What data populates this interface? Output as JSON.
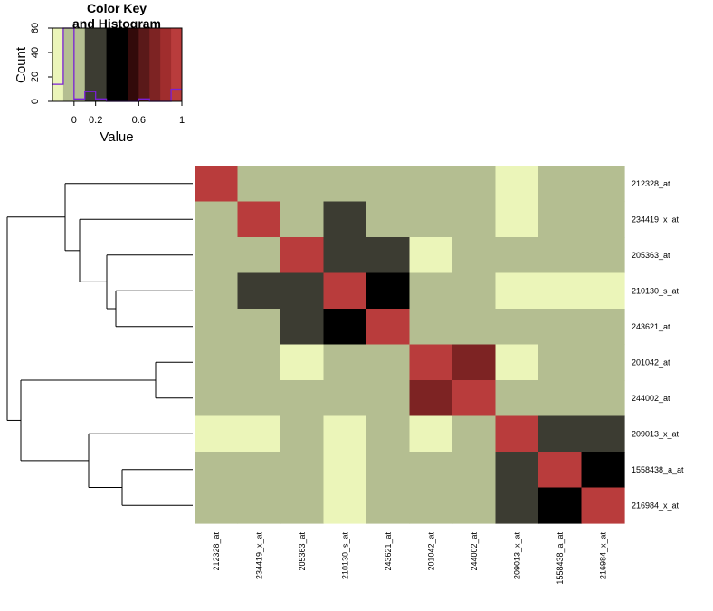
{
  "chart_data": [
    {
      "type": "heatmap",
      "row_labels": [
        "212328_at",
        "234419_x_at",
        "205363_at",
        "210130_s_at",
        "243621_at",
        "201042_at",
        "244002_at",
        "209013_x_at",
        "1558438_a_at",
        "216984_x_at"
      ],
      "col_labels": [
        "212328_at",
        "234419_x_at",
        "205363_at",
        "210130_s_at",
        "243621_at",
        "201042_at",
        "244002_at",
        "209013_x_at",
        "1558438_a_at",
        "216984_x_at"
      ],
      "values": [
        [
          1.0,
          0.0,
          0.0,
          0.0,
          0.0,
          0.0,
          0.0,
          -0.15,
          0.0,
          0.0
        ],
        [
          0.0,
          1.0,
          0.0,
          0.25,
          0.0,
          0.0,
          0.0,
          -0.15,
          0.0,
          0.0
        ],
        [
          0.0,
          0.0,
          1.0,
          0.25,
          0.25,
          -0.15,
          0.0,
          0.0,
          0.0,
          0.0
        ],
        [
          0.0,
          0.25,
          0.25,
          1.0,
          0.4,
          0.0,
          0.0,
          -0.15,
          -0.15,
          -0.15
        ],
        [
          0.0,
          0.0,
          0.25,
          0.4,
          1.0,
          0.0,
          0.0,
          0.0,
          0.0,
          0.0
        ],
        [
          0.0,
          0.0,
          -0.15,
          0.0,
          0.0,
          1.0,
          0.75,
          -0.15,
          0.0,
          0.0
        ],
        [
          0.0,
          0.0,
          0.0,
          0.0,
          0.0,
          0.75,
          1.0,
          0.0,
          0.0,
          0.0
        ],
        [
          -0.15,
          -0.15,
          0.0,
          -0.15,
          0.0,
          -0.15,
          0.0,
          1.0,
          0.15,
          0.25
        ],
        [
          0.0,
          0.0,
          0.0,
          -0.15,
          0.0,
          0.0,
          0.0,
          0.15,
          1.0,
          0.4
        ],
        [
          0.0,
          0.0,
          0.0,
          -0.15,
          0.0,
          0.0,
          0.0,
          0.25,
          0.4,
          1.0
        ]
      ]
    },
    {
      "type": "bar",
      "title": "Color Key\nand Histogram",
      "xlabel": "Value",
      "ylabel": "Count",
      "x_ticks": [
        "0",
        "0.2",
        "0.6",
        "1"
      ],
      "x_tick_values": [
        0,
        0.2,
        0.6,
        1
      ],
      "y_ticks": [
        "0",
        "20",
        "40",
        "60"
      ],
      "y_tick_values": [
        0,
        20,
        40,
        60
      ],
      "xlim": [
        -0.2,
        1.0
      ],
      "ylim": [
        0,
        60
      ],
      "color_breaks": [
        -0.2,
        -0.1,
        0.0,
        0.1,
        0.2,
        0.3,
        0.4,
        0.5,
        0.6,
        0.7,
        0.8,
        0.9,
        1.0
      ],
      "colors": [
        "#ebf5b9",
        "#b4be91",
        "#b4be91",
        "#3c3c32",
        "#3c3c32",
        "#000000",
        "#000000",
        "#320a0a",
        "#5a1919",
        "#7d2323",
        "#a02d2d",
        "#b93c3c"
      ],
      "histogram_bins": [
        -0.2,
        -0.1,
        0.0,
        0.1,
        0.2,
        0.3,
        0.4,
        0.5,
        0.6,
        0.7,
        0.8,
        0.9,
        1.0
      ],
      "histogram_counts": [
        14,
        60,
        2,
        8,
        2,
        0,
        0,
        0,
        2,
        0,
        0,
        10
      ]
    }
  ],
  "dendrogram": {
    "merges": [
      [
        4,
        5
      ],
      [
        3,
        6
      ],
      [
        2,
        7
      ],
      [
        1,
        8
      ],
      [
        10,
        11
      ],
      [
        12,
        9
      ],
      [
        13,
        14
      ],
      [
        -8,
        -9
      ],
      [
        -7,
        -10
      ],
      [
        -3,
        -4
      ],
      [
        -2,
        -5
      ],
      [
        -1,
        -6
      ]
    ]
  }
}
